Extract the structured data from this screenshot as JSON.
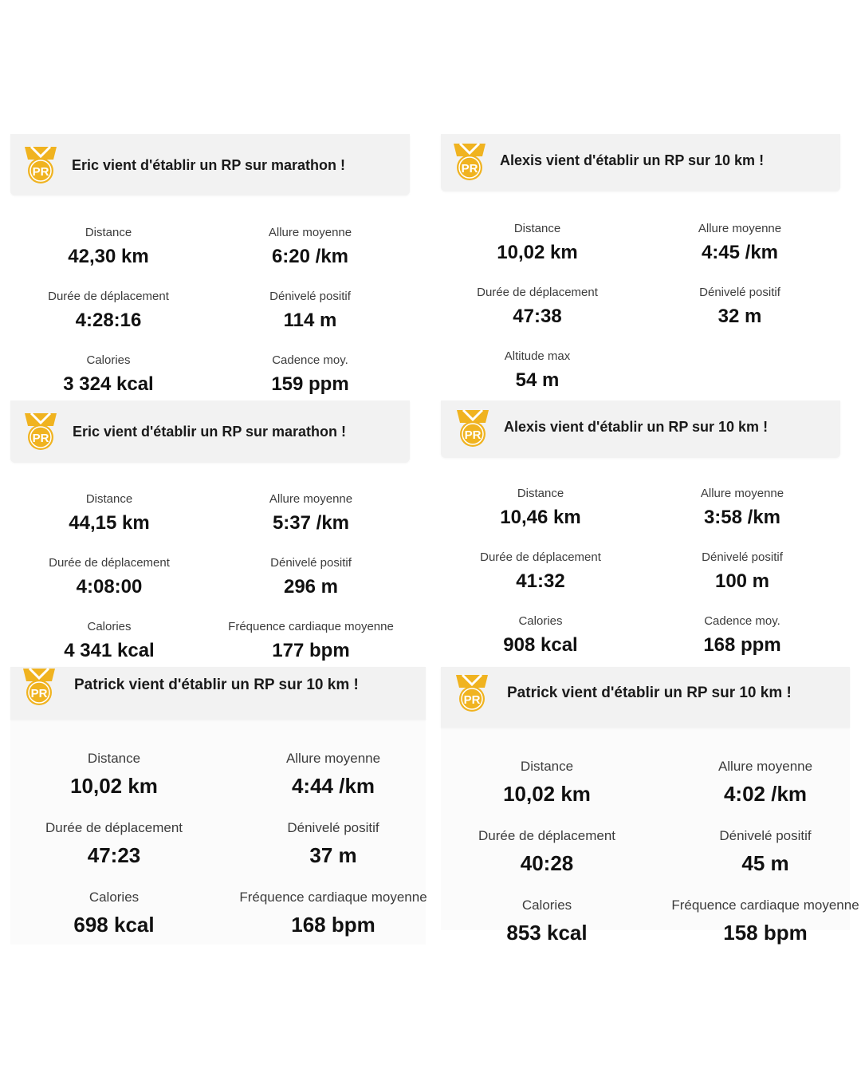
{
  "colors": {
    "badge": "#f0b320",
    "badge_dark": "#d99a0c",
    "banner_bg": "#f2f2f2"
  },
  "badge_icon": "pr-medal-icon",
  "cards": [
    {
      "headline": "Eric vient d'établir un RP sur marathon !",
      "badge_text": "PR",
      "stats": [
        {
          "label": "Distance",
          "value": "42,30 km"
        },
        {
          "label": "Allure moyenne",
          "value": "6:20 /km"
        },
        {
          "label": "Durée de déplacement",
          "value": "4:28:16"
        },
        {
          "label": "Dénivelé positif",
          "value": "114 m"
        },
        {
          "label": "Calories",
          "value": "3 324 kcal"
        },
        {
          "label": "Cadence moy.",
          "value": "159 ppm"
        }
      ]
    },
    {
      "headline": "Alexis vient d'établir un RP sur 10 km !",
      "badge_text": "PR",
      "stats": [
        {
          "label": "Distance",
          "value": "10,02 km"
        },
        {
          "label": "Allure moyenne",
          "value": "4:45 /km"
        },
        {
          "label": "Durée de déplacement",
          "value": "47:38"
        },
        {
          "label": "Dénivelé positif",
          "value": "32 m"
        },
        {
          "label": "Altitude max",
          "value": "54 m"
        }
      ]
    },
    {
      "headline": "Eric vient d'établir un RP sur marathon !",
      "badge_text": "PR",
      "stats": [
        {
          "label": "Distance",
          "value": "44,15 km"
        },
        {
          "label": "Allure moyenne",
          "value": "5:37 /km"
        },
        {
          "label": "Durée de déplacement",
          "value": "4:08:00"
        },
        {
          "label": "Dénivelé positif",
          "value": "296 m"
        },
        {
          "label": "Calories",
          "value": "4 341 kcal"
        },
        {
          "label": "Fréquence cardiaque moyenne",
          "value": "177 bpm"
        }
      ]
    },
    {
      "headline": "Alexis vient d'établir un RP sur 10 km !",
      "badge_text": "PR",
      "stats": [
        {
          "label": "Distance",
          "value": "10,46 km"
        },
        {
          "label": "Allure moyenne",
          "value": "3:58 /km"
        },
        {
          "label": "Durée de déplacement",
          "value": "41:32"
        },
        {
          "label": "Dénivelé positif",
          "value": "100 m"
        },
        {
          "label": "Calories",
          "value": "908 kcal"
        },
        {
          "label": "Cadence moy.",
          "value": "168 ppm"
        }
      ]
    },
    {
      "headline": "Patrick vient d'établir un RP sur 10 km !",
      "badge_text": "PR",
      "stats": [
        {
          "label": "Distance",
          "value": "10,02 km"
        },
        {
          "label": "Allure moyenne",
          "value": "4:44 /km"
        },
        {
          "label": "Durée de déplacement",
          "value": "47:23"
        },
        {
          "label": "Dénivelé positif",
          "value": "37 m"
        },
        {
          "label": "Calories",
          "value": "698 kcal"
        },
        {
          "label": "Fréquence cardiaque moyenne",
          "value": "168 bpm"
        }
      ]
    },
    {
      "headline": "Patrick vient d'établir un RP sur 10 km !",
      "badge_text": "PR",
      "stats": [
        {
          "label": "Distance",
          "value": "10,02 km"
        },
        {
          "label": "Allure moyenne",
          "value": "4:02 /km"
        },
        {
          "label": "Durée de déplacement",
          "value": "40:28"
        },
        {
          "label": "Dénivelé positif",
          "value": "45 m"
        },
        {
          "label": "Calories",
          "value": "853 kcal"
        },
        {
          "label": "Fréquence cardiaque moyenne",
          "value": "158 bpm"
        }
      ]
    }
  ]
}
